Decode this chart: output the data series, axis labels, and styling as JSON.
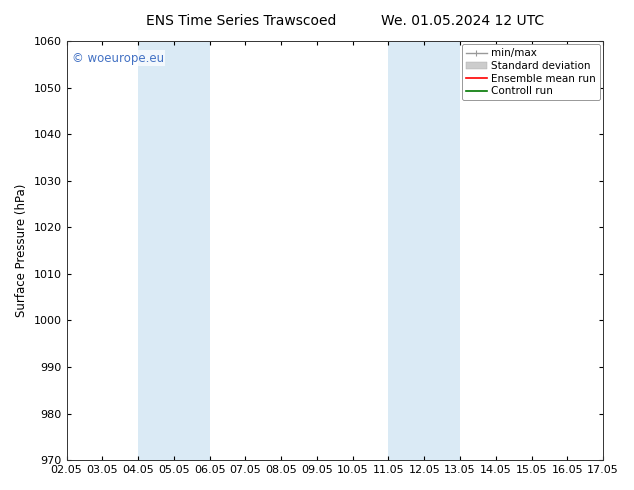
{
  "title_left": "ENS Time Series Trawscoed",
  "title_right": "We. 01.05.2024 12 UTC",
  "ylabel": "Surface Pressure (hPa)",
  "ylim": [
    970,
    1060
  ],
  "yticks": [
    970,
    980,
    990,
    1000,
    1010,
    1020,
    1030,
    1040,
    1050,
    1060
  ],
  "xtick_labels": [
    "02.05",
    "03.05",
    "04.05",
    "05.05",
    "06.05",
    "07.05",
    "08.05",
    "09.05",
    "10.05",
    "11.05",
    "12.05",
    "13.05",
    "14.05",
    "15.05",
    "16.05",
    "17.05"
  ],
  "num_xticks": 16,
  "xlim": [
    0,
    15
  ],
  "shaded_bands": [
    {
      "x_start": 2,
      "x_end": 4,
      "color": "#daeaf5"
    },
    {
      "x_start": 9,
      "x_end": 11,
      "color": "#daeaf5"
    }
  ],
  "watermark_text": "© woeurope.eu",
  "watermark_color": "#4472c4",
  "background_color": "#ffffff",
  "plot_bg_color": "#ffffff",
  "legend_items": [
    {
      "label": "min/max",
      "color": "#999999",
      "lw": 1.0
    },
    {
      "label": "Standard deviation",
      "color": "#cccccc",
      "lw": 6
    },
    {
      "label": "Ensemble mean run",
      "color": "#ff0000",
      "lw": 1.2
    },
    {
      "label": "Controll run",
      "color": "#007700",
      "lw": 1.2
    }
  ],
  "title_fontsize": 10,
  "tick_fontsize": 8,
  "ylabel_fontsize": 8.5,
  "legend_fontsize": 7.5,
  "watermark_fontsize": 8.5
}
